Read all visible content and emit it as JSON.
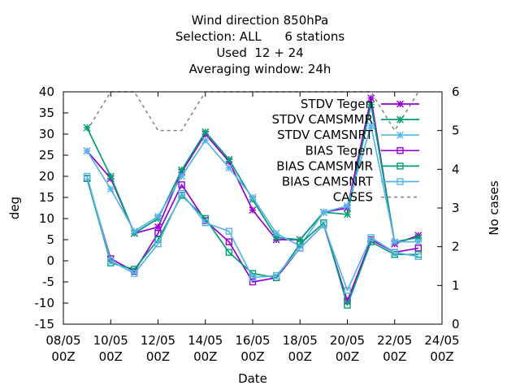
{
  "chart_data": {
    "type": "line",
    "title_lines": [
      "Wind direction 850hPa",
      "Selection: ALL      6 stations",
      "Used  12 + 24",
      "Averaging window: 24h"
    ],
    "xlabel": "Date",
    "ylabel": "deg",
    "y2label": "No cases",
    "x_ticks": [
      {
        "day": 8,
        "label": [
          "08/05",
          "00Z"
        ]
      },
      {
        "day": 10,
        "label": [
          "10/05",
          "00Z"
        ]
      },
      {
        "day": 12,
        "label": [
          "12/05",
          "00Z"
        ]
      },
      {
        "day": 14,
        "label": [
          "14/05",
          "00Z"
        ]
      },
      {
        "day": 16,
        "label": [
          "16/05",
          "00Z"
        ]
      },
      {
        "day": 18,
        "label": [
          "18/05",
          "00Z"
        ]
      },
      {
        "day": 20,
        "label": [
          "20/05",
          "00Z"
        ]
      },
      {
        "day": 22,
        "label": [
          "22/05",
          "00Z"
        ]
      },
      {
        "day": 24,
        "label": [
          "24/05",
          "00Z"
        ]
      }
    ],
    "xlim": [
      8,
      24
    ],
    "ylim": [
      -15,
      40
    ],
    "y_ticks": [
      -15,
      -10,
      -5,
      0,
      5,
      10,
      15,
      20,
      25,
      30,
      35,
      40
    ],
    "y2lim": [
      0,
      6
    ],
    "y2_ticks": [
      0,
      1,
      2,
      3,
      4,
      5,
      6
    ],
    "grid": false,
    "legend_position": "top-right",
    "x": [
      9,
      10,
      11,
      12,
      13,
      14,
      15,
      16,
      17,
      18,
      19,
      20,
      21,
      22,
      23
    ],
    "series": [
      {
        "name": "STDV Tegen",
        "color": "#9400d3",
        "marker": "star",
        "axis": "y1",
        "values": [
          26,
          19.5,
          6.5,
          8,
          21,
          30,
          23.5,
          12,
          5,
          5,
          11.5,
          12.5,
          38.5,
          4,
          6
        ]
      },
      {
        "name": "STDV CAMSMMR",
        "color": "#009e73",
        "marker": "star",
        "axis": "y1",
        "values": [
          31.5,
          20,
          6.5,
          10,
          21.5,
          30.5,
          24,
          14.5,
          5.5,
          5,
          11.5,
          11,
          37,
          4.5,
          5.5
        ]
      },
      {
        "name": "STDV CAMSNRT",
        "color": "#56b4e9",
        "marker": "star",
        "axis": "y1",
        "values": [
          26,
          17,
          7,
          10.5,
          20,
          28.5,
          22,
          15,
          6.5,
          3.5,
          11.5,
          13,
          32,
          4.5,
          4.5
        ]
      },
      {
        "name": "BIAS Tegen",
        "color": "#9400d3",
        "marker": "square",
        "axis": "y1",
        "values": [
          19.5,
          0.5,
          -2.5,
          6.5,
          18,
          9.5,
          4.5,
          -5,
          -4,
          3,
          8.5,
          -9.5,
          5,
          2,
          3
        ]
      },
      {
        "name": "BIAS CAMSMMR",
        "color": "#009e73",
        "marker": "square",
        "axis": "y1",
        "values": [
          19.5,
          -0.5,
          -2,
          5,
          15.5,
          10,
          2,
          -3,
          -4,
          4,
          9,
          -10.5,
          4.5,
          1.5,
          1.5
        ]
      },
      {
        "name": "BIAS CAMSNRT",
        "color": "#56b4e9",
        "marker": "square",
        "axis": "y1",
        "values": [
          20,
          0,
          -3,
          4,
          16,
          9,
          7,
          -4,
          -3.5,
          3,
          8.5,
          -7,
          5.5,
          2,
          1
        ]
      },
      {
        "name": "CASES",
        "color": "#808080",
        "marker": "none",
        "dashed": true,
        "axis": "y2",
        "values": [
          5,
          6,
          6,
          5,
          5,
          6,
          6,
          6,
          6,
          6,
          6,
          6,
          6,
          5,
          6
        ]
      }
    ]
  }
}
